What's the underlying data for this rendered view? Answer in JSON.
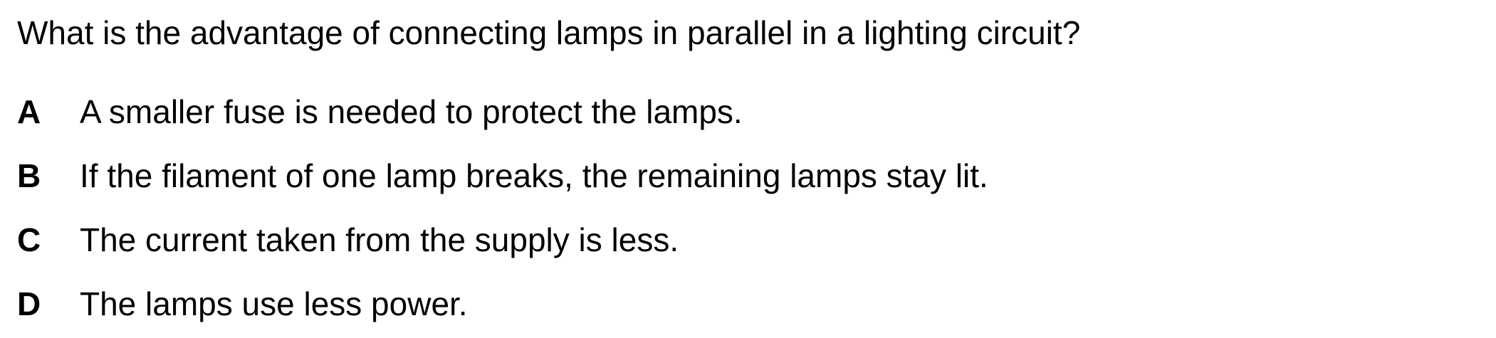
{
  "question": {
    "text": "What is the advantage of connecting lamps in parallel in a lighting circuit?"
  },
  "options": [
    {
      "letter": "A",
      "text": "A smaller fuse is needed to protect the lamps."
    },
    {
      "letter": "B",
      "text": "If the filament of one lamp breaks, the remaining lamps stay lit."
    },
    {
      "letter": "C",
      "text": "The current taken from the supply is less."
    },
    {
      "letter": "D",
      "text": "The lamps use less power."
    }
  ]
}
